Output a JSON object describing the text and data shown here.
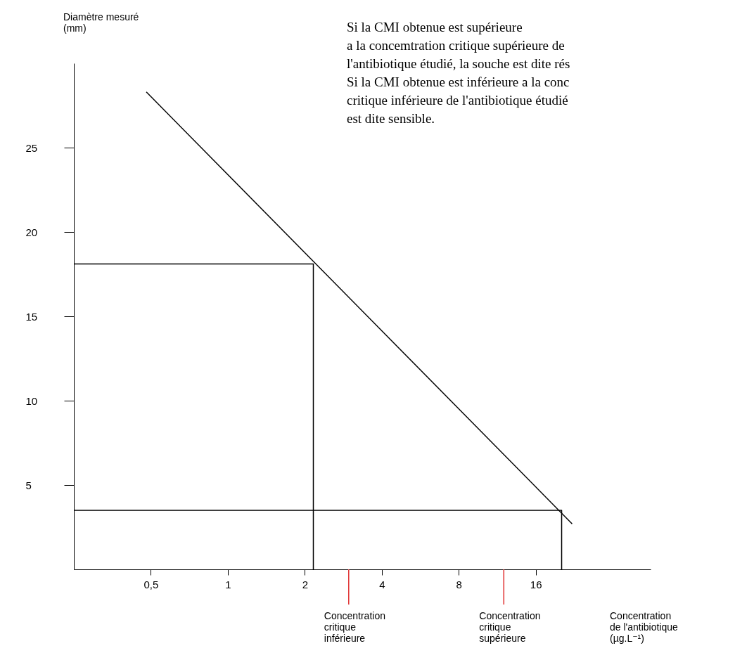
{
  "chart_data": {
    "type": "line",
    "xlabel": "Concentration\nde l'antibiotique\n(µg.L⁻¹)",
    "ylabel": "Diamètre mesuré\n(mm)",
    "log": "x",
    "xlim": [
      0.25,
      45
    ],
    "ylim": [
      0,
      30
    ],
    "xticks": [
      {
        "value": 0.5,
        "label": "0,5"
      },
      1,
      2,
      4,
      8,
      16
    ],
    "yticks": [
      5,
      10,
      15,
      20,
      25
    ],
    "grid": false,
    "marker": "none",
    "line_style": "solid",
    "series": [
      {
        "color": "#000000",
        "x": [
          0.48,
          22.2
        ],
        "values": [
          28.3,
          2.7
        ]
      },
      {
        "color": "#000000",
        "x": [
          0.25,
          2.16,
          2.16
        ],
        "values": [
          18.1,
          18.1,
          0
        ]
      },
      {
        "color": "#000000",
        "x": [
          0.25,
          20.2,
          20.2
        ],
        "values": [
          3.5,
          3.5,
          0
        ]
      }
    ],
    "ref_lines": [
      {
        "axis": "x",
        "value": 2.97,
        "label": "Concentration\ncritique\ninférieure",
        "color": "#e03030"
      },
      {
        "axis": "x",
        "value": 12,
        "label": "Concentration\ncritique\nsupérieure",
        "color": "#e03030"
      }
    ],
    "annotations": [
      "Si la CMI obtenue est supérieure\na la concemtration critique supérieure de\nl'antibiotique étudié, la souche est dite rés\nSi la CMI obtenue est inférieure a la conc\ncritique inférieure de l'antibiotique étudié\nest dite sensible."
    ]
  }
}
